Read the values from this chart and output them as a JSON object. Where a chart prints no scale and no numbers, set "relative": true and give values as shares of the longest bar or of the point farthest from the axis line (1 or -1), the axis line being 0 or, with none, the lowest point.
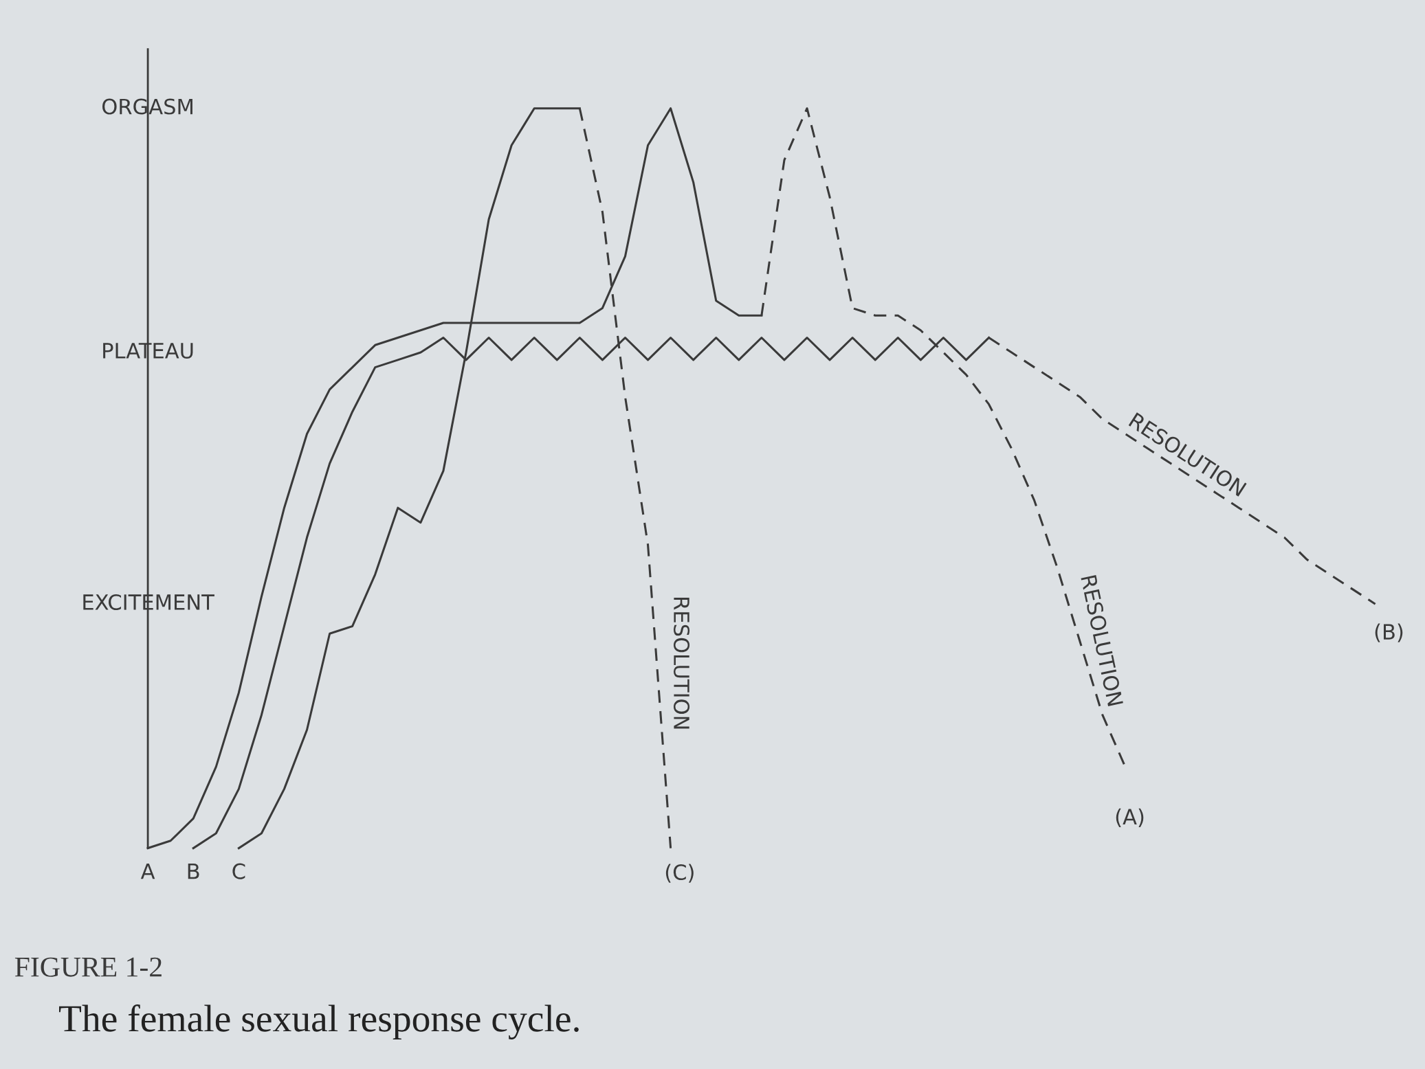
{
  "chart_data": {
    "type": "line",
    "title": "FIGURE 1-2",
    "subtitle": "The female sexual response cycle.",
    "relative": true,
    "legend": false,
    "marker": "none",
    "categories": [
      null,
      null,
      null,
      null,
      null,
      null,
      null,
      null,
      null,
      null,
      null,
      null,
      null,
      null,
      null,
      null,
      null,
      null,
      null,
      null,
      null,
      null,
      null,
      null,
      null,
      null,
      null,
      null,
      null,
      null,
      null,
      null,
      null,
      null,
      null,
      null,
      null,
      null,
      null,
      null,
      null,
      null,
      null,
      null,
      null,
      null,
      null,
      null,
      null,
      null,
      null,
      null,
      null,
      null,
      null
    ],
    "series": [
      {
        "name": "A",
        "color": "#3a3a3a",
        "line_style": "solid",
        "values": [
          0,
          0.01,
          0.04,
          0.11,
          0.21,
          0.34,
          0.46,
          0.56,
          0.62,
          0.65,
          0.68,
          0.69,
          0.7,
          0.71,
          0.71,
          0.71,
          0.71,
          0.71,
          0.71,
          0.71,
          0.73,
          0.8,
          0.95,
          1.0,
          0.9,
          0.74,
          0.72,
          0.72,
          null,
          null,
          null,
          null,
          null,
          null,
          null,
          null,
          null,
          null,
          null,
          null,
          null,
          null,
          null,
          null,
          null,
          null,
          null,
          null,
          null,
          null,
          null,
          null,
          null,
          null,
          null
        ]
      },
      {
        "color": "#3a3a3a",
        "line_style": "dashed",
        "values": [
          null,
          null,
          null,
          null,
          null,
          null,
          null,
          null,
          null,
          null,
          null,
          null,
          null,
          null,
          null,
          null,
          null,
          null,
          null,
          null,
          null,
          null,
          null,
          null,
          null,
          null,
          null,
          0.72,
          0.93,
          1.0,
          0.88,
          0.73,
          0.72,
          0.72,
          0.7,
          0.67,
          0.64,
          0.6,
          0.54,
          0.47,
          0.38,
          0.28,
          0.18,
          0.11,
          null,
          null,
          null,
          null,
          null,
          null,
          null,
          null,
          null,
          null,
          null
        ]
      },
      {
        "name": "B",
        "color": "#3a3a3a",
        "line_style": "solid",
        "values": [
          null,
          null,
          0,
          0.02,
          0.08,
          0.18,
          0.3,
          0.42,
          0.52,
          0.59,
          0.65,
          0.66,
          0.67,
          0.69,
          0.66,
          0.69,
          0.66,
          0.69,
          0.66,
          0.69,
          0.66,
          0.69,
          0.66,
          0.69,
          0.66,
          0.69,
          0.66,
          0.69,
          0.66,
          0.69,
          0.66,
          0.69,
          0.66,
          0.69,
          0.66,
          0.69,
          0.66,
          0.69,
          null,
          null,
          null,
          null,
          null,
          null,
          null,
          null,
          null,
          null,
          null,
          null,
          null,
          null,
          null,
          null,
          null
        ]
      },
      {
        "color": "#3a3a3a",
        "line_style": "dashed",
        "values": [
          null,
          null,
          null,
          null,
          null,
          null,
          null,
          null,
          null,
          null,
          null,
          null,
          null,
          null,
          null,
          null,
          null,
          null,
          null,
          null,
          null,
          null,
          null,
          null,
          null,
          null,
          null,
          null,
          null,
          null,
          null,
          null,
          null,
          null,
          null,
          null,
          null,
          0.69,
          0.67,
          0.65,
          0.63,
          0.61,
          0.58,
          0.56,
          0.54,
          0.52,
          0.5,
          0.48,
          0.46,
          0.44,
          0.42,
          0.39,
          0.37,
          0.35,
          0.33
        ]
      },
      {
        "name": "C",
        "color": "#3a3a3a",
        "line_style": "solid",
        "values": [
          null,
          null,
          null,
          null,
          0,
          0.02,
          0.08,
          0.16,
          0.29,
          0.3,
          0.37,
          0.46,
          0.44,
          0.51,
          0.67,
          0.85,
          0.95,
          1.0,
          1.0,
          1.0,
          null,
          null,
          null,
          null,
          null,
          null,
          null,
          null,
          null,
          null,
          null,
          null,
          null,
          null,
          null,
          null,
          null,
          null,
          null,
          null,
          null,
          null,
          null,
          null,
          null,
          null,
          null,
          null,
          null,
          null,
          null,
          null,
          null,
          null,
          null
        ]
      },
      {
        "color": "#3a3a3a",
        "line_style": "dashed",
        "values": [
          null,
          null,
          null,
          null,
          null,
          null,
          null,
          null,
          null,
          null,
          null,
          null,
          null,
          null,
          null,
          null,
          null,
          null,
          null,
          1.0,
          0.86,
          0.61,
          0.41,
          0,
          null,
          null,
          null,
          null,
          null,
          null,
          null,
          null,
          null,
          null,
          null,
          null,
          null,
          null,
          null,
          null,
          null,
          null,
          null,
          null,
          null,
          null,
          null,
          null,
          null,
          null,
          null,
          null,
          null,
          null,
          null
        ]
      }
    ],
    "annotations": [
      "(A)",
      "(B)",
      "(C)",
      "RESOLUTION",
      "RESOLUTION",
      "RESOLUTION",
      "EXCITEMENT",
      "PLATEAU",
      "ORGASM"
    ]
  }
}
